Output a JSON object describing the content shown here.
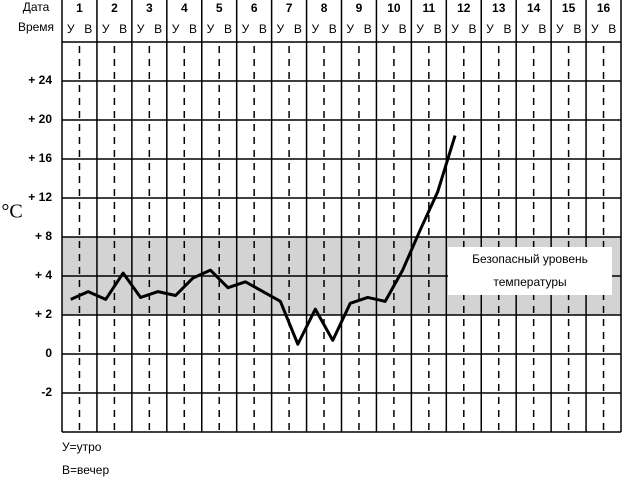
{
  "chart_data": {
    "type": "line",
    "header_date": "Дата",
    "header_time": "Время",
    "ylabel": "°C",
    "days": [
      "1",
      "2",
      "3",
      "4",
      "5",
      "6",
      "7",
      "8",
      "9",
      "10",
      "11",
      "12",
      "13",
      "14",
      "15",
      "16"
    ],
    "times": [
      "У",
      "В"
    ],
    "legend_notes": [
      "У=утро",
      "В=вечер"
    ],
    "band": {
      "range": [
        2,
        8
      ],
      "color": "#d3d3d3",
      "label": [
        "Безопасный уровень",
        "температуры"
      ]
    },
    "series": [
      {
        "color": "#000000",
        "values": [
          2.8,
          3.2,
          2.8,
          4.3,
          2.9,
          3.2,
          3.0,
          3.9,
          4.6,
          3.4,
          3.7,
          3.2,
          2.7,
          0.5,
          2.3,
          0.7,
          2.6,
          2.9,
          2.7,
          4.6,
          8.7,
          12.6,
          18.4,
          null,
          null,
          null,
          null,
          null,
          null,
          null,
          null,
          null
        ]
      }
    ],
    "ylim": [
      -4,
      28
    ],
    "yticks": [
      -2,
      0,
      {
        "value": 2,
        "label": "+ 2"
      },
      {
        "value": 4,
        "label": "+ 4"
      },
      {
        "value": 8,
        "label": "+ 8"
      },
      {
        "value": 12,
        "label": "+ 12"
      },
      {
        "value": 16,
        "label": "+ 16"
      },
      {
        "value": 20,
        "label": "+ 20"
      },
      {
        "value": 24,
        "label": "+ 24"
      }
    ],
    "grid": true
  }
}
